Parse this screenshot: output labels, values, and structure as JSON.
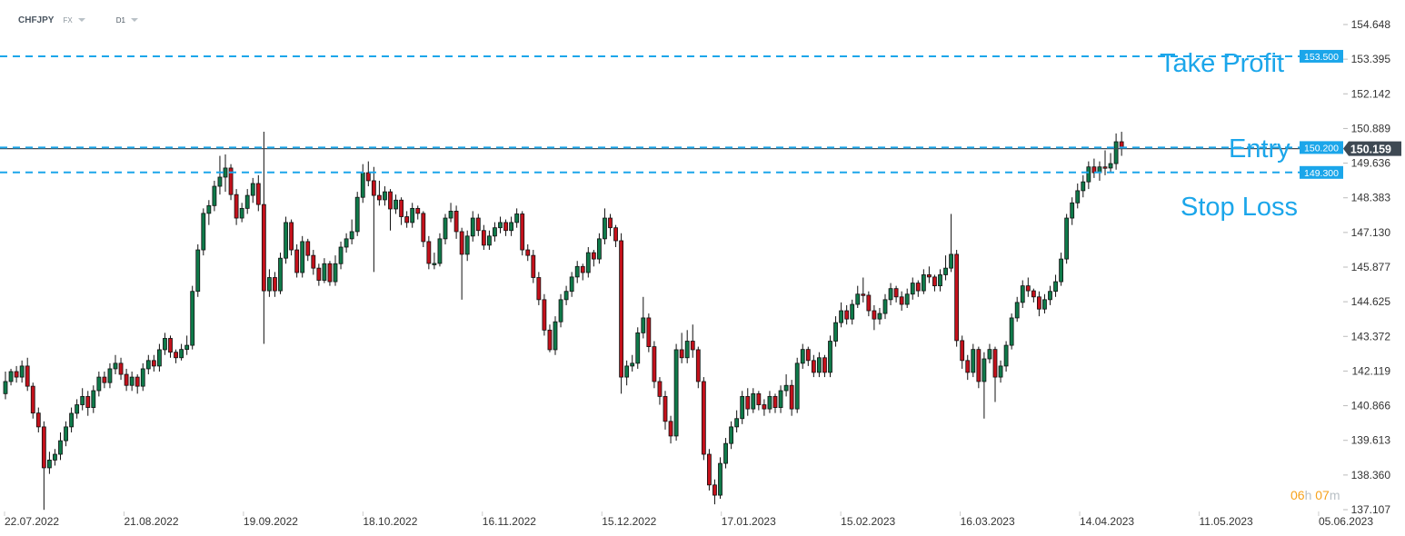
{
  "header": {
    "symbol": "CHFJPY",
    "market": "FX",
    "timeframe": "D1"
  },
  "timer": {
    "hours": "06",
    "hours_unit": "h",
    "minutes": "07",
    "minutes_unit": "m"
  },
  "colors": {
    "up": "#0f7a4a",
    "down": "#c4111b",
    "level_line": "#1ba6ea",
    "current_price_bg": "#3e4953",
    "timer": "#f7a21b"
  },
  "levels": [
    {
      "name": "Take Profit",
      "price": 153.5,
      "label": "153.500"
    },
    {
      "name": "Entry",
      "price": 150.2,
      "label": "150.200"
    },
    {
      "name": "Stop Loss",
      "price": 149.3,
      "label": "149.300"
    }
  ],
  "chart_data": {
    "type": "candlestick",
    "current_price": "150.159",
    "ylim": [
      137.107,
      154.648
    ],
    "yticks": [
      "154.648",
      "153.395",
      "152.142",
      "150.889",
      "149.636",
      "148.383",
      "147.130",
      "145.877",
      "144.625",
      "143.372",
      "142.119",
      "140.866",
      "139.613",
      "138.360",
      "137.107"
    ],
    "xticks": [
      "22.07.2022",
      "21.08.2022",
      "19.09.2022",
      "18.10.2022",
      "16.11.2022",
      "15.12.2022",
      "17.01.2023",
      "15.02.2023",
      "16.03.2023",
      "14.04.2023",
      "11.05.2023",
      "05.06.2023"
    ],
    "grid": false,
    "ohlc_fields": [
      "open",
      "high",
      "low",
      "close"
    ],
    "ohlc": [
      [
        141.3,
        142.1,
        141.1,
        141.74
      ],
      [
        141.74,
        142.2,
        141.6,
        142.1
      ],
      [
        142.1,
        142.3,
        141.7,
        141.9
      ],
      [
        141.9,
        142.5,
        141.7,
        142.3
      ],
      [
        142.3,
        142.6,
        141.4,
        141.57
      ],
      [
        141.57,
        141.7,
        140.4,
        140.6
      ],
      [
        140.6,
        140.8,
        139.9,
        140.1
      ],
      [
        140.1,
        140.3,
        137.1,
        138.62
      ],
      [
        138.62,
        139.2,
        138.4,
        138.9
      ],
      [
        138.9,
        139.3,
        138.7,
        139.11
      ],
      [
        139.11,
        139.9,
        138.9,
        139.6
      ],
      [
        139.6,
        140.3,
        139.4,
        140.1
      ],
      [
        140.1,
        140.8,
        139.9,
        140.59
      ],
      [
        140.59,
        141.1,
        140.4,
        140.9
      ],
      [
        140.9,
        141.5,
        140.7,
        141.2
      ],
      [
        141.2,
        141.4,
        140.5,
        140.8
      ],
      [
        140.8,
        141.6,
        140.6,
        141.41
      ],
      [
        141.41,
        142.1,
        141.2,
        141.9
      ],
      [
        141.9,
        142.1,
        141.5,
        141.7
      ],
      [
        141.7,
        142.4,
        141.5,
        142.2
      ],
      [
        142.2,
        142.7,
        142.0,
        142.4
      ],
      [
        142.4,
        142.6,
        141.8,
        142.0
      ],
      [
        142.0,
        142.2,
        141.4,
        141.6
      ],
      [
        141.6,
        142.1,
        141.4,
        141.9
      ],
      [
        141.9,
        142.0,
        141.3,
        141.57
      ],
      [
        141.57,
        142.4,
        141.4,
        142.2
      ],
      [
        142.2,
        142.7,
        142.0,
        142.5
      ],
      [
        142.5,
        142.7,
        142.1,
        142.3
      ],
      [
        142.3,
        143.1,
        142.1,
        142.89
      ],
      [
        142.89,
        143.5,
        142.7,
        143.3
      ],
      [
        143.3,
        143.4,
        142.6,
        142.8
      ],
      [
        142.8,
        142.9,
        142.4,
        142.6
      ],
      [
        142.6,
        143.1,
        142.5,
        142.9
      ],
      [
        142.9,
        143.4,
        142.7,
        143.05
      ],
      [
        143.05,
        145.2,
        142.9,
        145.0
      ],
      [
        145.0,
        146.7,
        144.8,
        146.5
      ],
      [
        146.5,
        148.0,
        146.3,
        147.82
      ],
      [
        147.82,
        148.3,
        147.4,
        148.1
      ],
      [
        148.1,
        149.0,
        147.9,
        148.8
      ],
      [
        148.8,
        149.9,
        148.5,
        149.13
      ],
      [
        149.13,
        149.95,
        148.6,
        149.46
      ],
      [
        149.46,
        149.6,
        148.3,
        148.5
      ],
      [
        148.5,
        148.7,
        147.4,
        147.65
      ],
      [
        147.65,
        148.2,
        147.5,
        148.0
      ],
      [
        148.0,
        148.7,
        147.8,
        148.47
      ],
      [
        148.47,
        149.1,
        148.2,
        148.9
      ],
      [
        148.9,
        149.2,
        147.9,
        148.14
      ],
      [
        148.14,
        150.77,
        143.1,
        145.02
      ],
      [
        145.02,
        145.8,
        144.8,
        145.5
      ],
      [
        145.5,
        145.7,
        144.8,
        145.02
      ],
      [
        145.02,
        146.4,
        144.9,
        146.2
      ],
      [
        146.2,
        147.7,
        146.0,
        147.49
      ],
      [
        147.49,
        147.6,
        146.3,
        146.5
      ],
      [
        146.5,
        146.7,
        145.5,
        145.68
      ],
      [
        145.68,
        147.0,
        145.5,
        146.8
      ],
      [
        146.8,
        146.9,
        146.1,
        146.3
      ],
      [
        146.3,
        146.5,
        145.6,
        145.84
      ],
      [
        145.84,
        146.0,
        145.2,
        145.4
      ],
      [
        145.4,
        146.2,
        145.3,
        146.0
      ],
      [
        146.0,
        146.1,
        145.2,
        145.35
      ],
      [
        145.35,
        146.3,
        145.2,
        146.0
      ],
      [
        146.0,
        146.8,
        145.8,
        146.6
      ],
      [
        146.6,
        147.1,
        146.4,
        146.9
      ],
      [
        146.9,
        147.6,
        146.7,
        147.16
      ],
      [
        147.16,
        148.6,
        147.0,
        148.4
      ],
      [
        148.4,
        149.6,
        148.2,
        149.29
      ],
      [
        149.29,
        149.7,
        148.8,
        149.0
      ],
      [
        149.0,
        149.5,
        145.7,
        148.47
      ],
      [
        148.47,
        149.0,
        148.1,
        148.31
      ],
      [
        148.31,
        148.8,
        148.1,
        148.6
      ],
      [
        148.6,
        148.7,
        147.2,
        147.98
      ],
      [
        147.98,
        148.5,
        147.8,
        148.3
      ],
      [
        148.3,
        148.4,
        147.4,
        147.7
      ],
      [
        147.7,
        147.9,
        147.3,
        147.49
      ],
      [
        147.49,
        148.2,
        147.3,
        148.0
      ],
      [
        148.0,
        148.1,
        147.6,
        147.82
      ],
      [
        147.82,
        147.9,
        146.6,
        146.8
      ],
      [
        146.8,
        147.0,
        145.8,
        146.01
      ],
      [
        146.01,
        146.4,
        145.8,
        146.01
      ],
      [
        146.01,
        147.1,
        145.9,
        146.9
      ],
      [
        146.9,
        147.8,
        146.7,
        147.65
      ],
      [
        147.65,
        148.2,
        147.5,
        147.9
      ],
      [
        147.9,
        148.1,
        146.9,
        147.16
      ],
      [
        147.16,
        147.3,
        144.7,
        146.34
      ],
      [
        146.34,
        147.2,
        146.1,
        147.0
      ],
      [
        147.0,
        147.9,
        146.8,
        147.65
      ],
      [
        147.65,
        147.8,
        147.0,
        147.2
      ],
      [
        147.2,
        147.4,
        146.5,
        146.67
      ],
      [
        146.67,
        147.2,
        146.5,
        147.0
      ],
      [
        147.0,
        147.5,
        146.8,
        147.3
      ],
      [
        147.3,
        147.7,
        147.1,
        147.49
      ],
      [
        147.49,
        147.6,
        147.0,
        147.2
      ],
      [
        147.2,
        147.7,
        147.0,
        147.49
      ],
      [
        147.49,
        148.0,
        147.3,
        147.8
      ],
      [
        147.8,
        147.9,
        146.3,
        146.5
      ],
      [
        146.5,
        146.7,
        146.1,
        146.3
      ],
      [
        146.3,
        146.5,
        145.3,
        145.5
      ],
      [
        145.5,
        145.7,
        144.5,
        144.7
      ],
      [
        144.7,
        144.9,
        143.4,
        143.6
      ],
      [
        143.6,
        143.8,
        142.8,
        142.89
      ],
      [
        142.89,
        144.1,
        142.7,
        143.9
      ],
      [
        143.9,
        144.9,
        143.7,
        144.7
      ],
      [
        144.7,
        145.2,
        144.5,
        145.0
      ],
      [
        145.0,
        145.7,
        144.8,
        145.52
      ],
      [
        145.52,
        146.1,
        145.3,
        145.9
      ],
      [
        145.9,
        146.0,
        145.4,
        145.68
      ],
      [
        145.68,
        146.6,
        145.5,
        146.4
      ],
      [
        146.4,
        146.5,
        145.9,
        146.17
      ],
      [
        146.17,
        147.1,
        146.0,
        146.9
      ],
      [
        146.9,
        148.0,
        146.7,
        147.65
      ],
      [
        147.65,
        147.8,
        147.0,
        147.3
      ],
      [
        147.3,
        147.4,
        146.6,
        146.83
      ],
      [
        146.83,
        147.1,
        141.3,
        141.9
      ],
      [
        141.9,
        142.5,
        141.6,
        142.3
      ],
      [
        142.3,
        142.7,
        142.1,
        142.4
      ],
      [
        142.4,
        143.7,
        142.2,
        143.5
      ],
      [
        143.5,
        144.8,
        143.3,
        144.04
      ],
      [
        144.04,
        144.2,
        142.8,
        143.0
      ],
      [
        143.0,
        143.2,
        141.5,
        141.74
      ],
      [
        141.74,
        141.9,
        140.9,
        141.2
      ],
      [
        141.2,
        141.4,
        140.0,
        140.3
      ],
      [
        140.3,
        140.5,
        139.5,
        139.77
      ],
      [
        139.77,
        143.1,
        139.6,
        142.89
      ],
      [
        142.89,
        143.5,
        142.4,
        142.6
      ],
      [
        142.6,
        143.6,
        142.4,
        143.2
      ],
      [
        143.2,
        143.8,
        142.6,
        142.89
      ],
      [
        142.89,
        143.0,
        141.5,
        141.74
      ],
      [
        141.74,
        141.9,
        138.9,
        139.11
      ],
      [
        139.11,
        139.3,
        137.8,
        138.0
      ],
      [
        138.0,
        138.2,
        137.3,
        137.63
      ],
      [
        137.63,
        139.0,
        137.5,
        138.78
      ],
      [
        138.78,
        139.7,
        138.6,
        139.5
      ],
      [
        139.5,
        140.3,
        139.3,
        140.1
      ],
      [
        140.1,
        140.7,
        139.9,
        140.4
      ],
      [
        140.4,
        141.4,
        140.2,
        141.2
      ],
      [
        141.2,
        141.5,
        140.5,
        140.75
      ],
      [
        140.75,
        141.5,
        140.6,
        141.3
      ],
      [
        141.3,
        141.4,
        140.7,
        140.9
      ],
      [
        140.9,
        141.1,
        140.5,
        140.75
      ],
      [
        140.75,
        141.4,
        140.6,
        141.2
      ],
      [
        141.2,
        141.3,
        140.6,
        140.8
      ],
      [
        140.8,
        141.6,
        140.6,
        141.41
      ],
      [
        141.41,
        142.0,
        141.2,
        141.6
      ],
      [
        141.6,
        141.8,
        140.5,
        140.75
      ],
      [
        140.75,
        142.6,
        140.6,
        142.4
      ],
      [
        142.4,
        143.1,
        142.2,
        142.9
      ],
      [
        142.9,
        143.0,
        142.3,
        142.5
      ],
      [
        142.5,
        142.7,
        141.9,
        142.07
      ],
      [
        142.07,
        142.8,
        141.9,
        142.6
      ],
      [
        142.6,
        142.7,
        141.9,
        142.07
      ],
      [
        142.07,
        143.4,
        141.9,
        143.2
      ],
      [
        143.2,
        144.1,
        143.0,
        143.87
      ],
      [
        143.87,
        144.6,
        143.7,
        144.3
      ],
      [
        144.3,
        144.5,
        143.8,
        144.0
      ],
      [
        144.0,
        144.7,
        143.8,
        144.53
      ],
      [
        144.53,
        145.2,
        144.4,
        144.9
      ],
      [
        144.9,
        145.5,
        144.6,
        144.86
      ],
      [
        144.86,
        145.0,
        144.1,
        144.3
      ],
      [
        144.3,
        144.5,
        143.6,
        144.0
      ],
      [
        144.0,
        144.4,
        143.8,
        144.2
      ],
      [
        144.2,
        144.9,
        144.0,
        144.7
      ],
      [
        144.7,
        145.3,
        144.5,
        145.1
      ],
      [
        145.1,
        145.2,
        144.6,
        144.8
      ],
      [
        144.8,
        145.0,
        144.3,
        144.53
      ],
      [
        144.53,
        145.1,
        144.4,
        144.9
      ],
      [
        144.9,
        145.5,
        144.7,
        145.3
      ],
      [
        145.3,
        145.4,
        144.8,
        145.02
      ],
      [
        145.02,
        145.8,
        144.9,
        145.6
      ],
      [
        145.6,
        145.9,
        145.3,
        145.52
      ],
      [
        145.52,
        145.6,
        145.0,
        145.2
      ],
      [
        145.2,
        145.8,
        145.0,
        145.6
      ],
      [
        145.6,
        146.3,
        145.4,
        145.84
      ],
      [
        145.84,
        147.8,
        145.7,
        146.34
      ],
      [
        146.34,
        146.5,
        143.0,
        143.22
      ],
      [
        143.22,
        143.4,
        142.2,
        142.5
      ],
      [
        142.5,
        142.7,
        141.8,
        142.07
      ],
      [
        142.07,
        143.1,
        141.9,
        142.9
      ],
      [
        142.9,
        143.0,
        141.5,
        141.74
      ],
      [
        141.74,
        142.8,
        140.4,
        142.56
      ],
      [
        142.56,
        143.1,
        142.4,
        142.9
      ],
      [
        142.9,
        143.0,
        141.0,
        141.9
      ],
      [
        141.9,
        142.5,
        141.7,
        142.3
      ],
      [
        142.3,
        143.2,
        142.1,
        143.05
      ],
      [
        143.05,
        144.2,
        142.9,
        144.04
      ],
      [
        144.04,
        144.8,
        143.9,
        144.6
      ],
      [
        144.6,
        145.4,
        144.4,
        145.2
      ],
      [
        145.2,
        145.5,
        144.8,
        145.02
      ],
      [
        145.02,
        145.1,
        144.6,
        144.8
      ],
      [
        144.8,
        145.0,
        144.1,
        144.36
      ],
      [
        144.36,
        144.9,
        144.2,
        144.7
      ],
      [
        144.7,
        145.2,
        144.5,
        145.0
      ],
      [
        145.0,
        145.6,
        144.8,
        145.35
      ],
      [
        145.35,
        146.4,
        145.2,
        146.17
      ],
      [
        146.17,
        147.8,
        146.0,
        147.65
      ],
      [
        147.65,
        148.4,
        147.4,
        148.2
      ],
      [
        148.2,
        148.9,
        148.0,
        148.64
      ],
      [
        148.64,
        149.2,
        148.4,
        148.96
      ],
      [
        148.96,
        149.7,
        148.7,
        149.5
      ],
      [
        149.5,
        149.8,
        149.1,
        149.29
      ],
      [
        149.29,
        149.7,
        149.0,
        149.5
      ],
      [
        149.5,
        150.1,
        149.2,
        149.46
      ],
      [
        149.46,
        150.0,
        149.3,
        149.62
      ],
      [
        149.62,
        150.71,
        149.4,
        150.41
      ],
      [
        150.41,
        150.77,
        149.9,
        150.16
      ]
    ]
  }
}
